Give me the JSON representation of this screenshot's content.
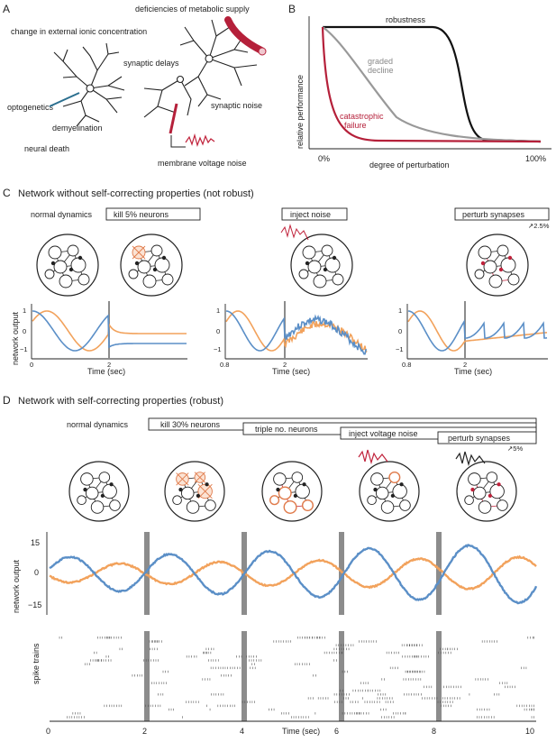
{
  "panels": {
    "A": "A",
    "B": "B",
    "C": "C",
    "D": "D"
  },
  "panel_a": {
    "labels": {
      "deficiencies": "deficiencies of metabolic supply",
      "ionic": "change in external ionic concentration",
      "synaptic_delays": "synaptic delays",
      "optogenetics": "optogenetics",
      "demyelination": "demyelination",
      "synaptic_noise": "synaptic noise",
      "neural_death": "neural death",
      "membrane_noise": "membrane voltage noise"
    }
  },
  "chart_b": {
    "type": "line",
    "xlabel": "degree of perturbation",
    "ylabel": "relative performance",
    "x_ticks": [
      "0%",
      "100%"
    ],
    "curves": [
      {
        "name": "robustness",
        "color": "#111111"
      },
      {
        "name_line1": "graded",
        "name_line2": "decline",
        "color": "#999999"
      },
      {
        "name_line1": "catastrophic",
        "name_line2": "failure",
        "color": "#b5203a"
      }
    ]
  },
  "section_c": {
    "title": "Network without self-correcting properties (not robust)",
    "normal_label": "normal dynamics",
    "boxes": [
      "kill 5% neurons",
      "inject noise",
      "perturb synapses"
    ],
    "perturb_pct": "↗2.5%",
    "ylabel": "network output",
    "xlabel": "Time (sec)",
    "yticks": [
      "1",
      "0",
      "−1"
    ],
    "plot1_xticks": [
      "0",
      "2"
    ],
    "plot2_xticks": [
      "0.8",
      "2"
    ],
    "plot3_xticks": [
      "0.8",
      "2"
    ]
  },
  "section_d": {
    "title": "Network with self-correcting properties (robust)",
    "normal_label": "normal dynamics",
    "boxes": [
      "kill 30% neurons",
      "triple no. neurons",
      "inject voltage noise",
      "perturb synapses"
    ],
    "perturb_pct": "↗5%",
    "ylabel": "network output",
    "yticks": [
      "15",
      "0",
      "−15"
    ],
    "spike_label": "spike trains",
    "xlabel": "Time (sec)",
    "xticks": [
      "0",
      "2",
      "4",
      "6",
      "8",
      "10"
    ]
  },
  "colors": {
    "blue": "#5b8fc7",
    "orange": "#f2a25c",
    "red": "#c0223b",
    "grey": "#8c8c8c"
  }
}
